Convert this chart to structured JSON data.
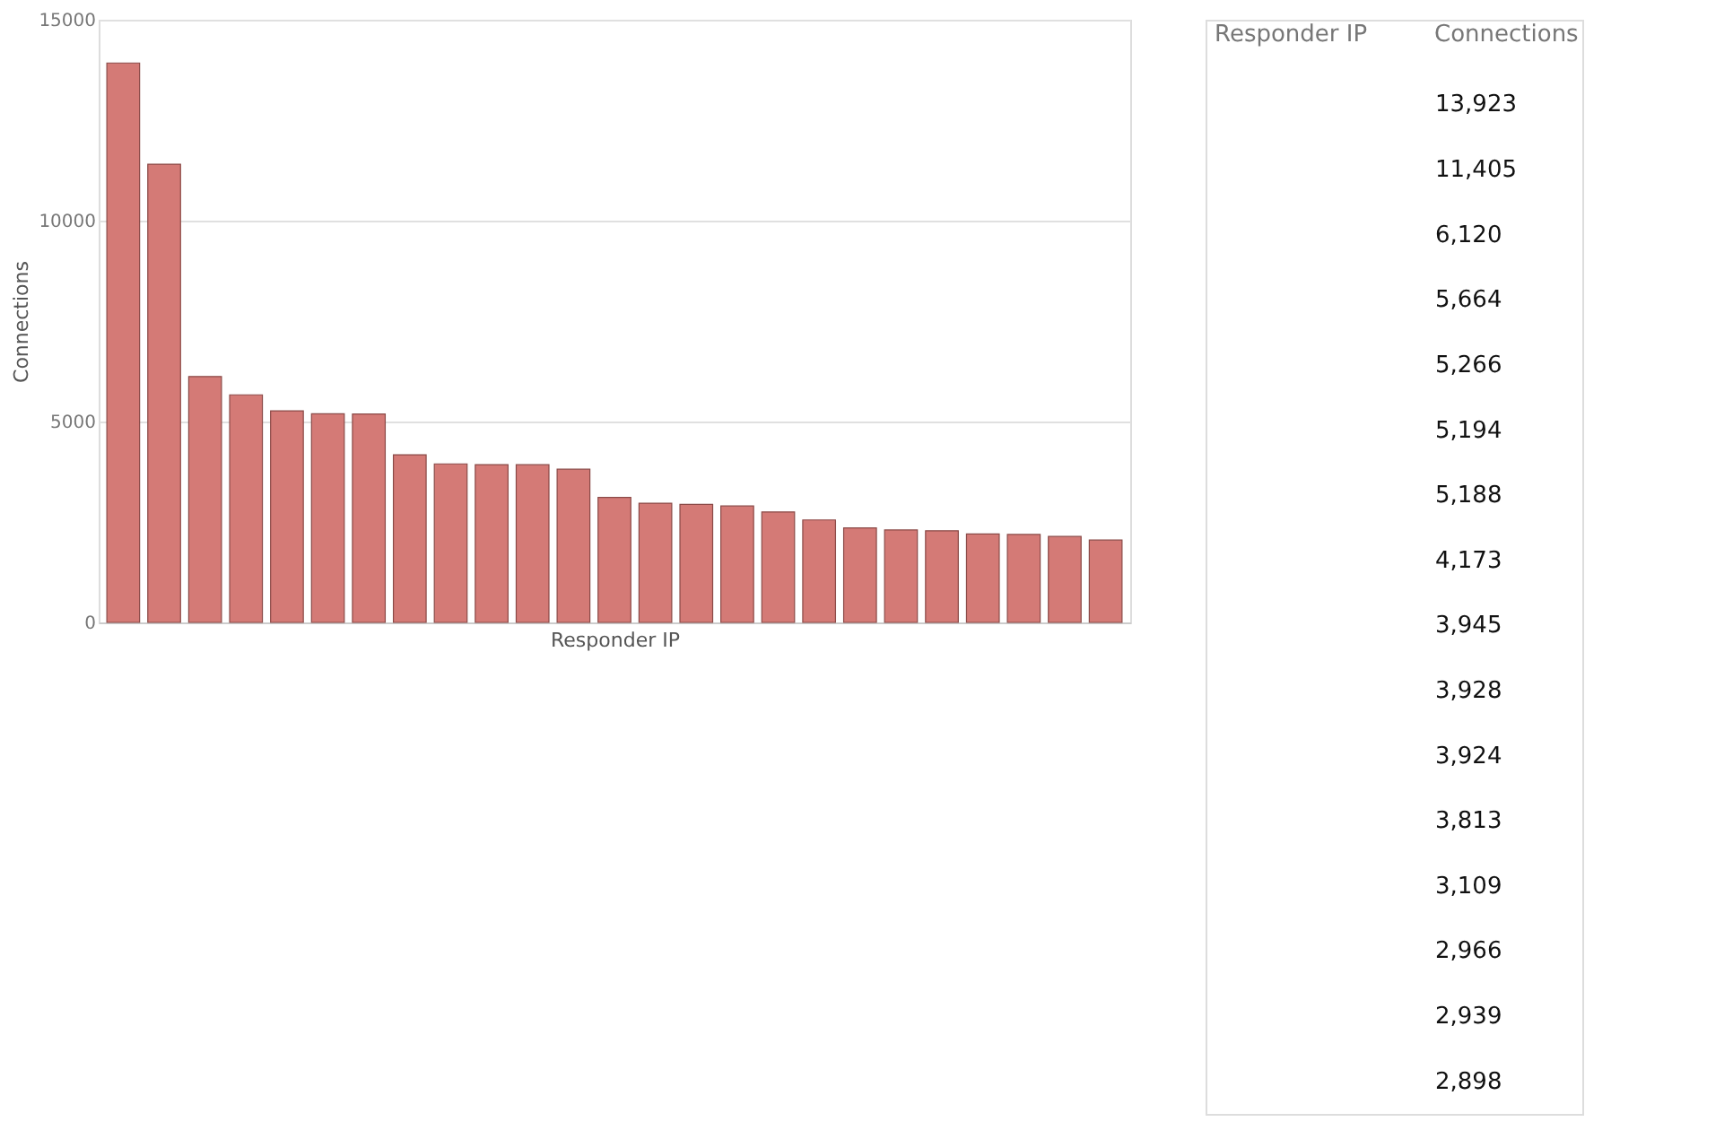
{
  "chart_data": {
    "type": "bar",
    "xlabel": "Responder IP",
    "ylabel": "Connections",
    "categories": [
      null,
      null,
      null,
      null,
      null,
      null,
      null,
      null,
      null,
      null,
      null,
      null,
      null,
      null,
      null,
      null,
      null,
      null,
      null,
      null,
      null,
      null,
      null,
      null,
      null
    ],
    "values": [
      13923,
      11405,
      6120,
      5664,
      5266,
      5194,
      5188,
      4173,
      3945,
      3928,
      3924,
      3813,
      3109,
      2966,
      2939,
      2898,
      2750,
      2550,
      2350,
      2300,
      2280,
      2200,
      2190,
      2140,
      2050
    ],
    "color": "#d47a76",
    "ylim": [
      0,
      15000
    ],
    "yticks": [
      0,
      5000,
      10000,
      15000
    ],
    "grid": "y",
    "tick_labels": "y",
    "annotations": [
      "Responder IP",
      "Connections",
      "13,923",
      "11,405",
      "6,120",
      "5,664",
      "5,266",
      "5,194",
      "5,188",
      "4,173",
      "3,945",
      "3,928",
      "3,924",
      "3,813",
      "3,109",
      "2,966",
      "2,939",
      "2,898"
    ]
  }
}
